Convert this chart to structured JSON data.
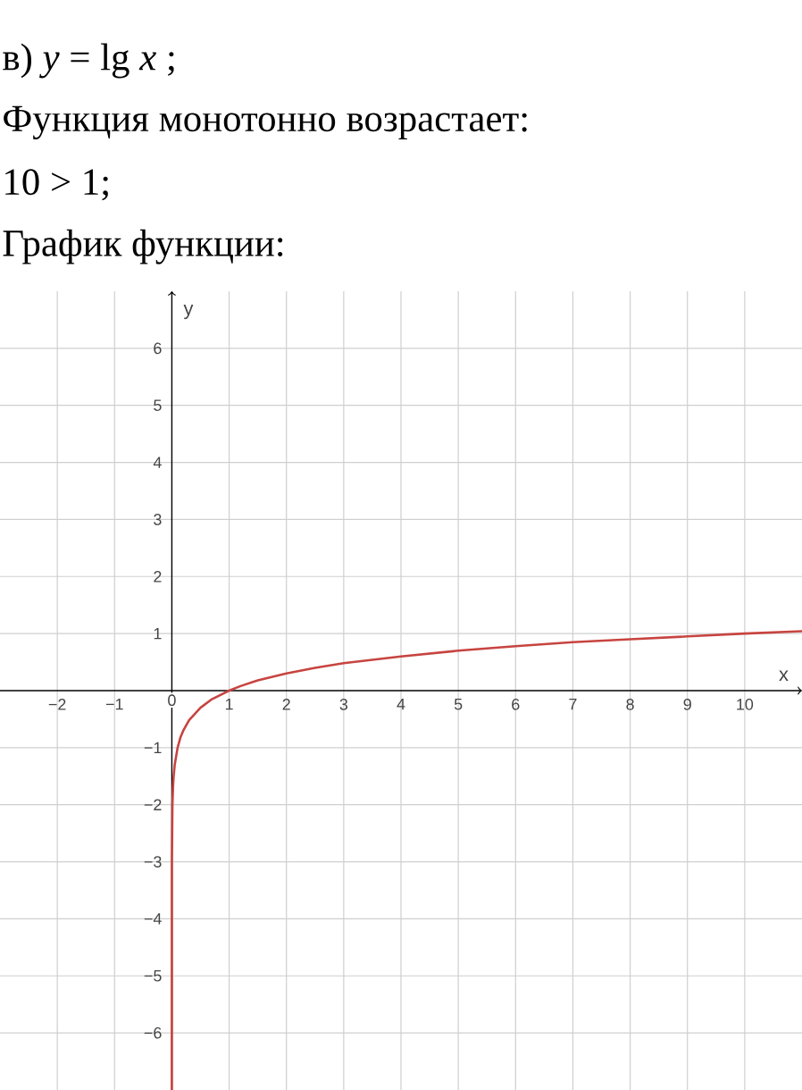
{
  "chart_data": {
    "type": "line",
    "title": "в) *y* = lg *x* ;",
    "annotations": [
      "Функция монотонно возрастает:",
      "10 > 1;",
      "График функции:"
    ],
    "xlabel": "x",
    "ylabel": "y",
    "xlim": [
      -3,
      11
    ],
    "ylim": [
      -7,
      7
    ],
    "xticks": [
      {
        "value": -2,
        "label": "−2"
      },
      {
        "value": -1,
        "label": "−1"
      },
      0,
      1,
      2,
      3,
      4,
      5,
      6,
      7,
      8,
      9,
      10
    ],
    "yticks": [
      {
        "value": -6,
        "label": "−6"
      },
      {
        "value": -5,
        "label": "−5"
      },
      {
        "value": -4,
        "label": "−4"
      },
      {
        "value": -3,
        "label": "−3"
      },
      {
        "value": -2,
        "label": "−2"
      },
      {
        "value": -1,
        "label": "−1"
      },
      1,
      2,
      3,
      4,
      5,
      6
    ],
    "grid": true,
    "series": [
      {
        "color": "#c74440",
        "x": [
          1e-07,
          0.001,
          0.01,
          0.02,
          0.03,
          0.05,
          0.1,
          0.15,
          0.2,
          0.3,
          0.5,
          0.7,
          1,
          1.2,
          1.5,
          2,
          2.5,
          3,
          4,
          5,
          6,
          7,
          8,
          9,
          10,
          11
        ],
        "values": [
          -7,
          -3,
          -2,
          -1.7,
          -1.52,
          -1.3,
          -1,
          -0.82,
          -0.7,
          -0.52,
          -0.3,
          -0.15,
          0,
          0.08,
          0.18,
          0.3,
          0.4,
          0.48,
          0.6,
          0.7,
          0.78,
          0.85,
          0.9,
          0.95,
          1,
          1.04
        ]
      }
    ]
  }
}
